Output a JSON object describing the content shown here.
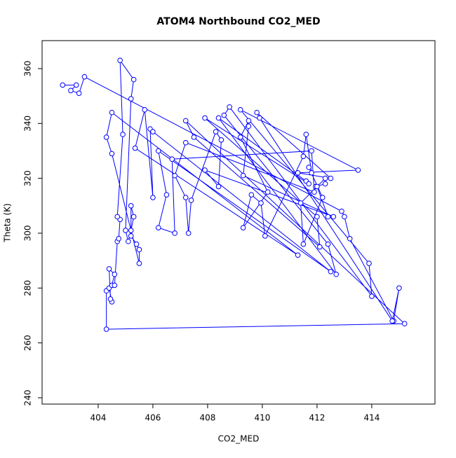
{
  "chart_data": {
    "type": "line",
    "markers": true,
    "title": "ATOM4 Northbound CO2_MED",
    "xlabel": "CO2_MED",
    "ylabel": "Theta (K)",
    "x": [
      402.7,
      403.2,
      403.0,
      403.3,
      403.5,
      412.9,
      413.0,
      413.2,
      414.8,
      415.0,
      414.75,
      409.9,
      409.8,
      412.5,
      411.3,
      413.5,
      409.2,
      413.9,
      414.0,
      408.8,
      408.6,
      412.4,
      412.7,
      408.4,
      411.6,
      411.7,
      407.9,
      412.0,
      412.1,
      407.5,
      407.2,
      415.2,
      404.3,
      404.3,
      404.4,
      404.5,
      404.45,
      404.4,
      404.6,
      404.5,
      404.6,
      404.7,
      404.75,
      404.8,
      404.7,
      404.9,
      404.8,
      405.3,
      405.2,
      405.0,
      405.1,
      405.2,
      405.3,
      405.2,
      405.2,
      405.4,
      405.5,
      405.5,
      404.5,
      404.3,
      404.5,
      411.3,
      405.35,
      405.7,
      406.0,
      405.9,
      406.0,
      412.5,
      406.2,
      406.5,
      406.2,
      406.8,
      406.7,
      411.8,
      411.9,
      407.2,
      406.8,
      407.2,
      407.3,
      407.4,
      408.3,
      408.5,
      408.4,
      407.9,
      412.6,
      409.3,
      409.5,
      409.5,
      409.2,
      410.2,
      409.3,
      409.6,
      409.95,
      410.1,
      411.5,
      411.6,
      411.8,
      411.7,
      412.2,
      411.5,
      411.4,
      412.3,
      412.3,
      411.95,
      412.0,
      412.4
    ],
    "series": [
      {
        "color": "#0000ff",
        "values": [
          354,
          354,
          352,
          351,
          357,
          308,
          306,
          298,
          268,
          280,
          268,
          342,
          344,
          320,
          322,
          323,
          345,
          289,
          277,
          346,
          343,
          296,
          285,
          342,
          319,
          318,
          342,
          306,
          295,
          335,
          341,
          267,
          265,
          279,
          280,
          275,
          276,
          287,
          285,
          281,
          281,
          297,
          298,
          305,
          306,
          336,
          363,
          356,
          349,
          301,
          297,
          301,
          306,
          310,
          299,
          296,
          294,
          289,
          329,
          335,
          344,
          292,
          331,
          345,
          313,
          338,
          337,
          286,
          330,
          314,
          302,
          300,
          327,
          330,
          315,
          333,
          321,
          313,
          300,
          312,
          337,
          334,
          317,
          323,
          306,
          321,
          339,
          341,
          335,
          315,
          302,
          314,
          311,
          299,
          328,
          336,
          322,
          324,
          313,
          296,
          311,
          320,
          318,
          317,
          317,
          306
        ]
      }
    ],
    "xlim": [
      401.95,
      416.31
    ],
    "ylim": [
      237.7,
      370.2
    ],
    "xticks": [
      404,
      406,
      408,
      410,
      412,
      414
    ],
    "yticks": [
      240,
      260,
      280,
      300,
      320,
      340,
      360
    ]
  }
}
